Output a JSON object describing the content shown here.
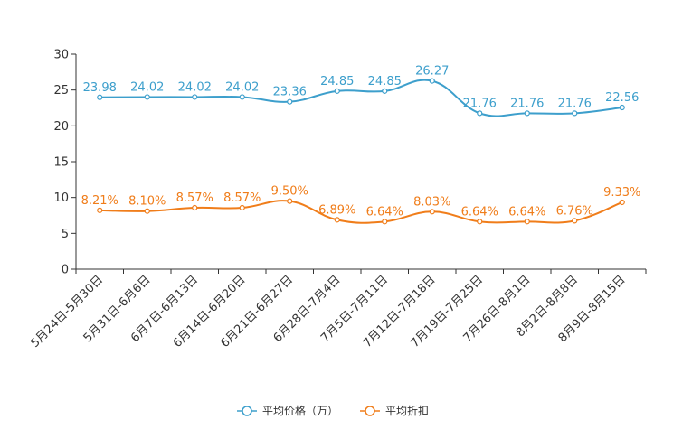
{
  "chart_data": {
    "type": "line",
    "title": "",
    "xlabel": "",
    "ylabel": "",
    "ylim": [
      0,
      30
    ],
    "yticks": [
      0,
      5,
      10,
      15,
      20,
      25,
      30
    ],
    "grid": false,
    "legend_position": "bottom-center",
    "categories": [
      "5月24日-5月30日",
      "5月31日-6月6日",
      "6月7日-6月13日",
      "6月14日-6月20日",
      "6月21日-6月27日",
      "6月28日-7月4日",
      "7月5日-7月11日",
      "7月12日-7月18日",
      "7月19日-7月25日",
      "7月26日-8月1日",
      "8月2日-8月8日",
      "8月9日-8月15日"
    ],
    "series": [
      {
        "name": "平均价格（万）",
        "color": "#3d9fcc",
        "values": [
          23.98,
          24.02,
          24.02,
          24.02,
          23.36,
          24.85,
          24.85,
          26.27,
          21.76,
          21.76,
          21.76,
          22.56
        ],
        "labels": [
          "23.98",
          "24.02",
          "24.02",
          "24.02",
          "23.36",
          "24.85",
          "24.85",
          "26.27",
          "21.76",
          "21.76",
          "21.76",
          "22.56"
        ]
      },
      {
        "name": "平均折扣",
        "color": "#f07d1a",
        "values": [
          8.21,
          8.1,
          8.57,
          8.57,
          9.5,
          6.89,
          6.64,
          8.03,
          6.64,
          6.64,
          6.76,
          9.33
        ],
        "labels": [
          "8.21%",
          "8.10%",
          "8.57%",
          "8.57%",
          "9.50%",
          "6.89%",
          "6.64%",
          "8.03%",
          "6.64%",
          "6.64%",
          "6.76%",
          "9.33%"
        ]
      }
    ]
  }
}
